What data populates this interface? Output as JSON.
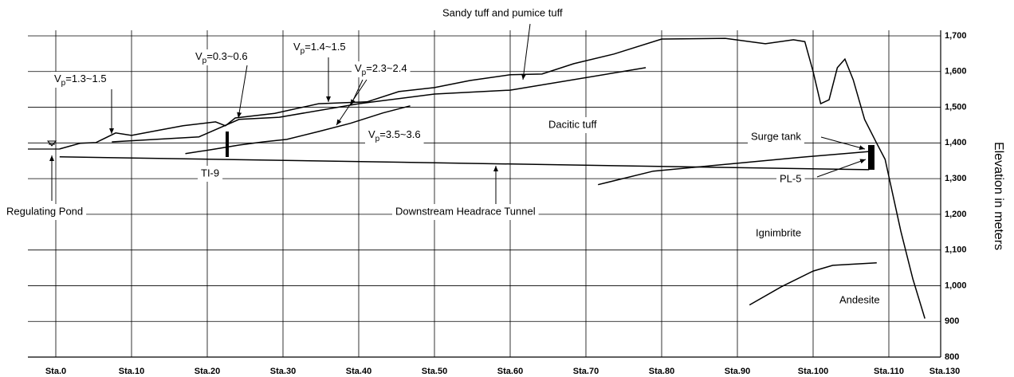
{
  "chart_data": {
    "type": "line",
    "y_label": "Elevation in meters",
    "ylim": [
      800,
      1700
    ],
    "yticks": [
      {
        "value": 800,
        "label": "800"
      },
      {
        "value": 900,
        "label": "900"
      },
      {
        "value": 1000,
        "label": "1,000"
      },
      {
        "value": 1100,
        "label": "1,100"
      },
      {
        "value": 1200,
        "label": "1,200"
      },
      {
        "value": 1300,
        "label": "1,300"
      },
      {
        "value": 1400,
        "label": "1,400"
      },
      {
        "value": 1500,
        "label": "1,500"
      },
      {
        "value": 1600,
        "label": "1,600"
      },
      {
        "value": 1700,
        "label": "1,700"
      }
    ],
    "xticks": [
      {
        "value": 0,
        "label": "Sta.0"
      },
      {
        "value": 10,
        "label": "Sta.10"
      },
      {
        "value": 20,
        "label": "Sta.20"
      },
      {
        "value": 30,
        "label": "Sta.30"
      },
      {
        "value": 40,
        "label": "Sta.40"
      },
      {
        "value": 50,
        "label": "Sta.50"
      },
      {
        "value": 60,
        "label": "Sta.60"
      },
      {
        "value": 70,
        "label": "Sta.70"
      },
      {
        "value": 80,
        "label": "Sta.80"
      },
      {
        "value": 90,
        "label": "Sta.90"
      },
      {
        "value": 100,
        "label": "Sta.100"
      },
      {
        "value": 110,
        "label": "Sta.110"
      },
      {
        "value": 130,
        "label": "Sta.130"
      }
    ],
    "grid": true,
    "series": [
      {
        "color": "#000000",
        "x": [
          0.5,
          3.2,
          5.3,
          7.9,
          10,
          13.2,
          16.8,
          21.1,
          22.4,
          23.7,
          28.9,
          34.7,
          41.1,
          45.3,
          50,
          54.7,
          60,
          64.2,
          68.4,
          73.7,
          80,
          88.4,
          93.7,
          97.4,
          98.9,
          100,
          101,
          102.1,
          103.2,
          104.2,
          105.3,
          106.8,
          108.4,
          109.5,
          114.3,
          118.6,
          122.9
        ],
        "values": [
          1383,
          1399,
          1401,
          1428,
          1421,
          1434,
          1448,
          1459,
          1448,
          1470,
          1483,
          1510,
          1515,
          1544,
          1555,
          1575,
          1591,
          1593,
          1622,
          1649,
          1691,
          1693,
          1678,
          1689,
          1684,
          1600,
          1510,
          1521,
          1611,
          1635,
          1577,
          1466,
          1399,
          1354,
          1153,
          1019,
          908
        ]
      },
      {
        "color": "#000000",
        "x": [
          7.4,
          18.9,
          24.2,
          29.5,
          40,
          50,
          60,
          77.9
        ],
        "values": [
          1403,
          1417,
          1466,
          1472,
          1510,
          1537,
          1548,
          1611
        ]
      },
      {
        "color": "#000000",
        "x": [
          17.1,
          21.1,
          24.2,
          27.4,
          30.5,
          34.7,
          38.9,
          43.2,
          46.8
        ],
        "values": [
          1370,
          1383,
          1394,
          1403,
          1410,
          1432,
          1455,
          1484,
          1504
        ]
      },
      {
        "color": "#000000",
        "x": [
          71.6,
          78.9,
          87.4,
          97.9,
          107.4
        ],
        "values": [
          1283,
          1321,
          1338,
          1359,
          1376
        ]
      },
      {
        "color": "#000000",
        "x": [
          91.6,
          95.8,
          100,
          102.6,
          108.4
        ],
        "values": [
          946,
          997,
          1041,
          1057,
          1064
        ]
      },
      {
        "color": "#000000",
        "x": [
          0.5,
          107.4
        ],
        "values": [
          1361,
          1325
        ]
      }
    ],
    "annotations": [
      {
        "text": "Sandy tuff and pumice tuff"
      },
      {
        "base": "V",
        "sub": "p",
        "rest": "=1.3~1.5"
      },
      {
        "base": "V",
        "sub": "p",
        "rest": "=0.3~0.6"
      },
      {
        "base": "V",
        "sub": "p",
        "rest": "=1.4~1.5"
      },
      {
        "base": "V",
        "sub": "p",
        "rest": "=2.3~2.4"
      },
      {
        "base": "V",
        "sub": "p",
        "rest": "=3.5~3.6"
      },
      {
        "text": "Dacitic tuff"
      },
      {
        "text": "Surge tank"
      },
      {
        "text": "PL-5"
      },
      {
        "text": "TI-9"
      },
      {
        "text": "Regulating Pond"
      },
      {
        "text": "Downstream Headrace Tunnel"
      },
      {
        "text": "Ignimbrite"
      },
      {
        "text": "Andesite"
      }
    ]
  }
}
